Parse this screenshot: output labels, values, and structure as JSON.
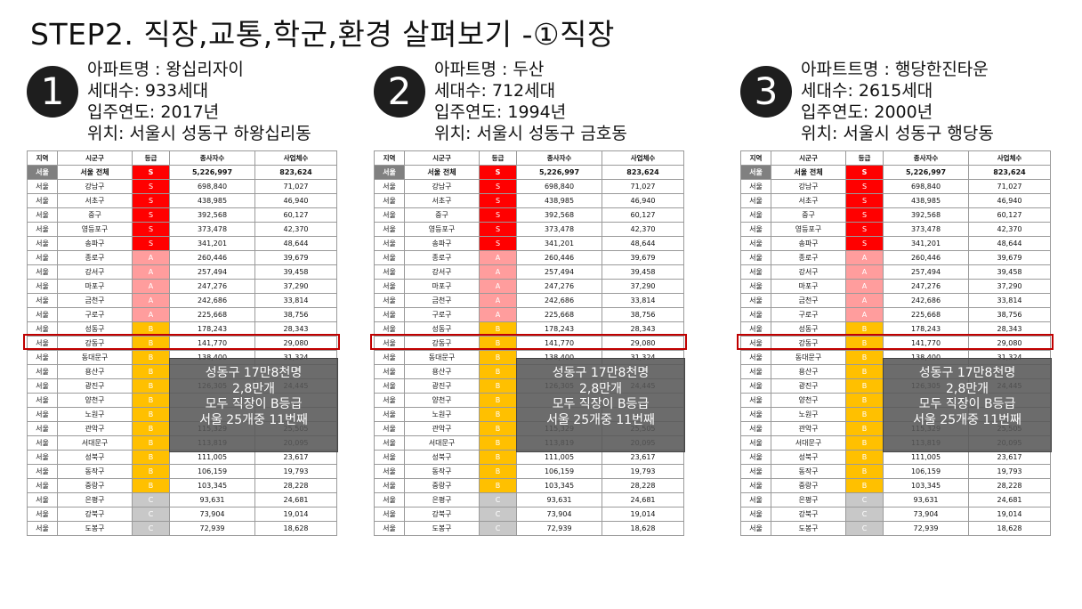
{
  "title": "STEP2. 직장,교통,학군,환경 살펴보기 -①직장",
  "columns": [
    "지역",
    "시군구",
    "등급",
    "종사자수",
    "사업체수"
  ],
  "rows": [
    {
      "region": "서울",
      "district": "서울 전체",
      "grade": "S",
      "workers": "5,226,997",
      "businesses": "823,624",
      "total": true
    },
    {
      "region": "서울",
      "district": "강남구",
      "grade": "S",
      "workers": "698,840",
      "businesses": "71,027"
    },
    {
      "region": "서울",
      "district": "서초구",
      "grade": "S",
      "workers": "438,985",
      "businesses": "46,940"
    },
    {
      "region": "서울",
      "district": "중구",
      "grade": "S",
      "workers": "392,568",
      "businesses": "60,127"
    },
    {
      "region": "서울",
      "district": "영등포구",
      "grade": "S",
      "workers": "373,478",
      "businesses": "42,370"
    },
    {
      "region": "서울",
      "district": "송파구",
      "grade": "S",
      "workers": "341,201",
      "businesses": "48,644"
    },
    {
      "region": "서울",
      "district": "종로구",
      "grade": "A",
      "workers": "260,446",
      "businesses": "39,679"
    },
    {
      "region": "서울",
      "district": "강서구",
      "grade": "A",
      "workers": "257,494",
      "businesses": "39,458"
    },
    {
      "region": "서울",
      "district": "마포구",
      "grade": "A",
      "workers": "247,276",
      "businesses": "37,290"
    },
    {
      "region": "서울",
      "district": "금천구",
      "grade": "A",
      "workers": "242,686",
      "businesses": "33,814"
    },
    {
      "region": "서울",
      "district": "구로구",
      "grade": "A",
      "workers": "225,668",
      "businesses": "38,756"
    },
    {
      "region": "서울",
      "district": "성동구",
      "grade": "B",
      "workers": "178,243",
      "businesses": "28,343"
    },
    {
      "region": "서울",
      "district": "강동구",
      "grade": "B",
      "workers": "141,770",
      "businesses": "29,080"
    },
    {
      "region": "서울",
      "district": "동대문구",
      "grade": "B",
      "workers": "138,400",
      "businesses": "31,324"
    },
    {
      "region": "서울",
      "district": "용산구",
      "grade": "B",
      "workers": "",
      "businesses": ""
    },
    {
      "region": "서울",
      "district": "광진구",
      "grade": "B",
      "workers": "126,305",
      "businesses": "24,445"
    },
    {
      "region": "서울",
      "district": "양천구",
      "grade": "B",
      "workers": "",
      "businesses": ""
    },
    {
      "region": "서울",
      "district": "노원구",
      "grade": "B",
      "workers": "",
      "businesses": ""
    },
    {
      "region": "서울",
      "district": "관악구",
      "grade": "B",
      "workers": "115,329",
      "businesses": "25,505"
    },
    {
      "region": "서울",
      "district": "서대문구",
      "grade": "B",
      "workers": "113,819",
      "businesses": "20,095"
    },
    {
      "region": "서울",
      "district": "성북구",
      "grade": "B",
      "workers": "111,005",
      "businesses": "23,617"
    },
    {
      "region": "서울",
      "district": "동작구",
      "grade": "B",
      "workers": "106,159",
      "businesses": "19,793"
    },
    {
      "region": "서울",
      "district": "중랑구",
      "grade": "B",
      "workers": "103,345",
      "businesses": "28,228"
    },
    {
      "region": "서울",
      "district": "은평구",
      "grade": "C",
      "workers": "93,631",
      "businesses": "24,681"
    },
    {
      "region": "서울",
      "district": "강북구",
      "grade": "C",
      "workers": "73,904",
      "businesses": "19,014"
    },
    {
      "region": "서울",
      "district": "도봉구",
      "grade": "C",
      "workers": "72,939",
      "businesses": "18,628"
    }
  ],
  "overlay_lines": [
    "성동구 17만8천명",
    "2,8만개",
    "모두 직장이 B등급",
    "서울 25개중 11번째"
  ],
  "panels": [
    {
      "number": "1",
      "name": "아파트명 : 왕십리자이",
      "households": "세대수: 933세대",
      "year": "입주연도: 2017년",
      "location": "위치: 서울시 성동구 하왕십리동"
    },
    {
      "number": "2",
      "name": "아파트명 : 두산",
      "households": "세대수: 712세대",
      "year": "입주연도: 1994년",
      "location": "위치: 서울시 성동구 금호동"
    },
    {
      "number": "3",
      "name": "아파트트명 : 행당한진타운",
      "households": "세대수: 2615세대",
      "year": "입주연도: 2000년",
      "location": "위치: 서울시 성동구 행당동"
    }
  ],
  "colors": {
    "S": "#ff0000",
    "A": "#ff9d9d",
    "B": "#ffc000",
    "C": "#c8c8c8",
    "highlight": "#c00000"
  }
}
